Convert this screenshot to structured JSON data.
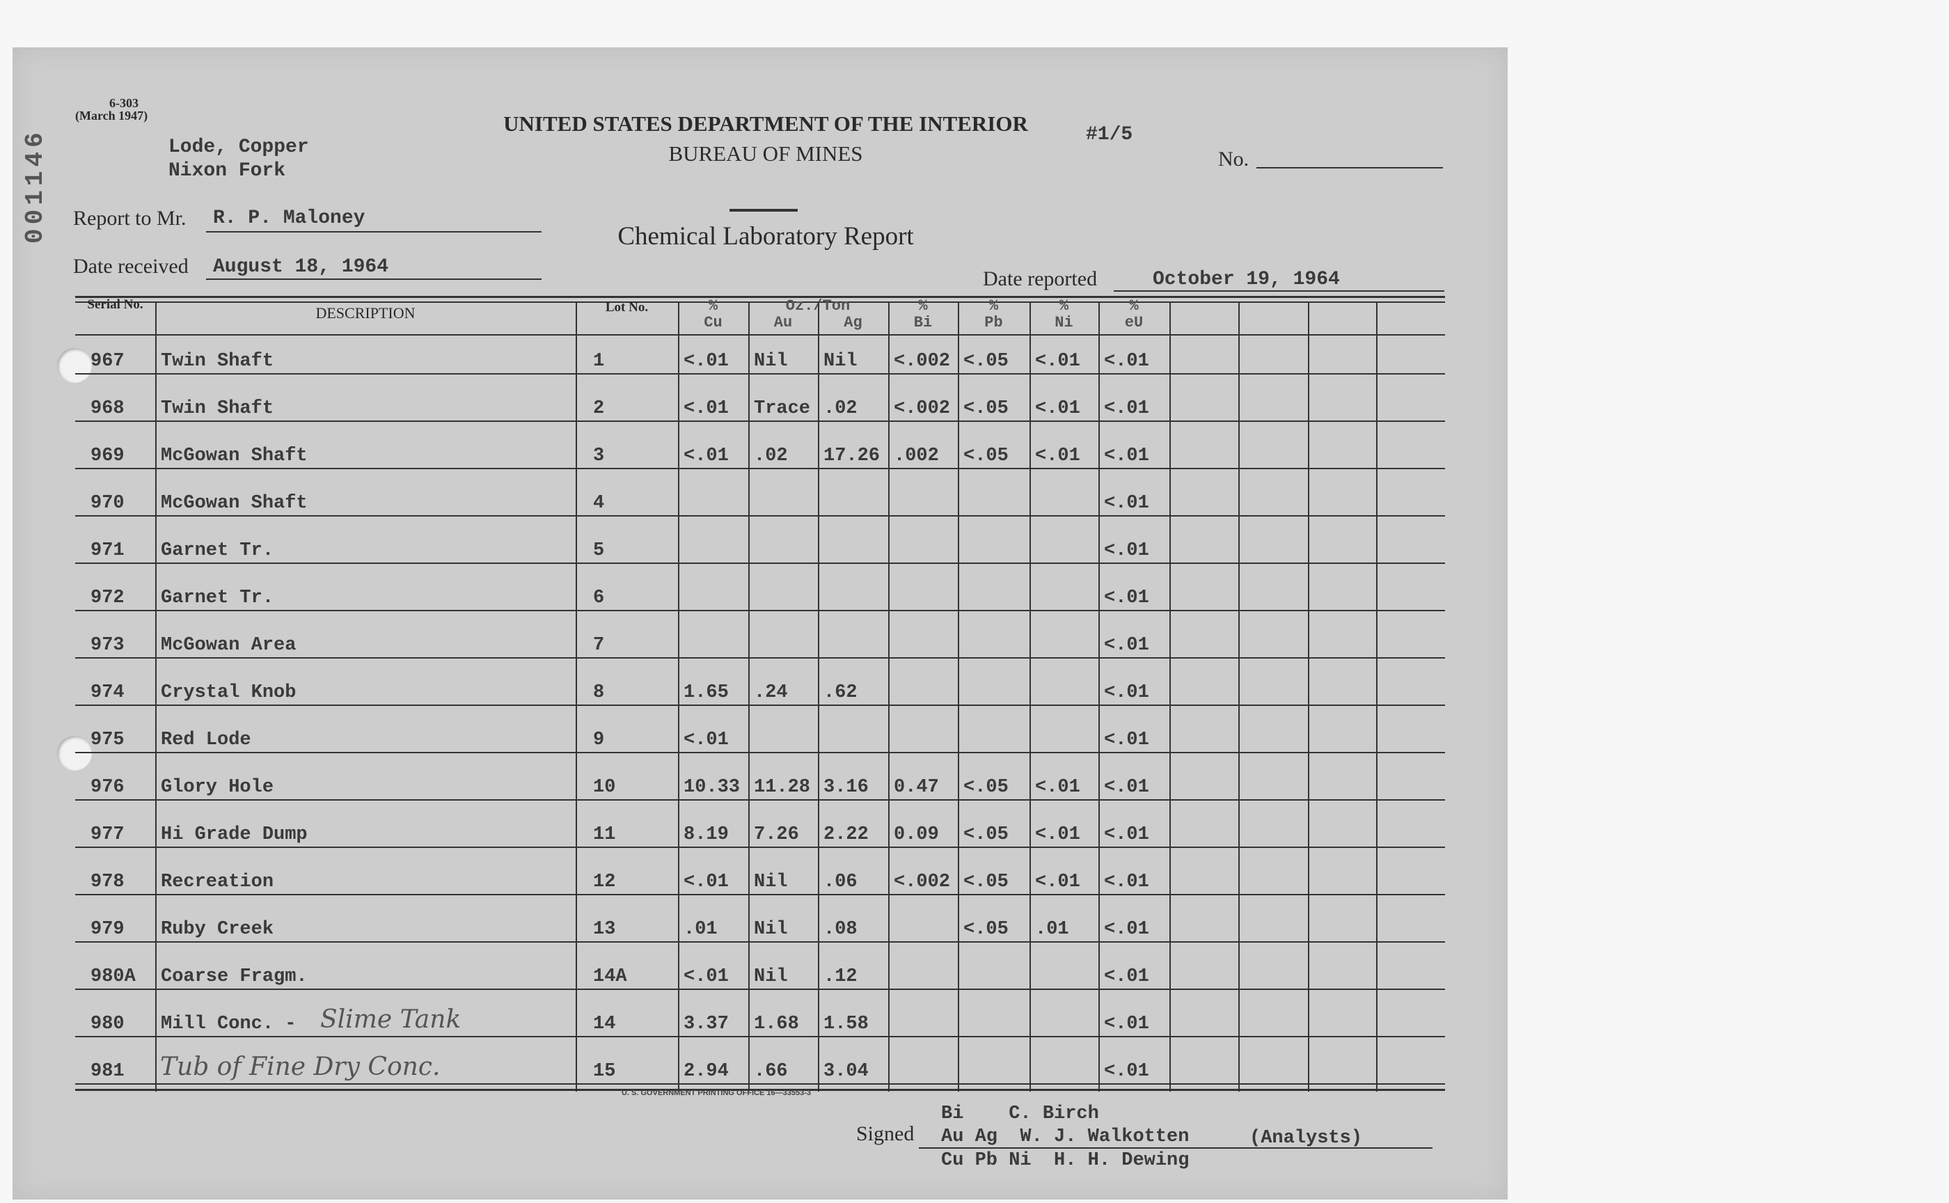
{
  "form": {
    "number": "6-303",
    "date": "(March 1947)"
  },
  "stamp": "001146",
  "subject": {
    "line1": "Lode, Copper",
    "line2": "Nixon Fork"
  },
  "header": {
    "title1": "UNITED STATES DEPARTMENT OF THE INTERIOR",
    "title2": "BUREAU OF MINES",
    "sheet": "#1/5",
    "no_label": "No.",
    "report_title": "Chemical Laboratory Report"
  },
  "fields": {
    "report_to_label": "Report to Mr.",
    "report_to_value": "R. P. Maloney",
    "date_received_label": "Date received",
    "date_received_value": "August 18, 1964",
    "date_reported_label": "Date reported",
    "date_reported_value": "October 19, 1964"
  },
  "table": {
    "headers": {
      "serial": "Serial No.",
      "description": "DESCRIPTION",
      "lot": "Lot No.",
      "oz_ton": "Oz./Ton",
      "cu": "%\nCu",
      "au": "Au",
      "ag": "Ag",
      "bi": "%\nBi",
      "pb": "%\nPb",
      "ni": "%\nNi",
      "eu": "%\neU"
    },
    "rows": [
      {
        "serial": "967",
        "description": "Twin Shaft",
        "lot": "1",
        "cu": "<.01",
        "au": "Nil",
        "ag": "Nil",
        "bi": "<.002",
        "pb": "<.05",
        "ni": "<.01",
        "eu": "<.01"
      },
      {
        "serial": "968",
        "description": "Twin Shaft",
        "lot": "2",
        "cu": "<.01",
        "au": "Trace",
        "ag": ".02",
        "bi": "<.002",
        "pb": "<.05",
        "ni": "<.01",
        "eu": "<.01"
      },
      {
        "serial": "969",
        "description": "McGowan Shaft",
        "lot": "3",
        "cu": "<.01",
        "au": ".02",
        "ag": "17.26",
        "bi": ".002",
        "pb": "<.05",
        "ni": "<.01",
        "eu": "<.01"
      },
      {
        "serial": "970",
        "description": "McGowan Shaft",
        "lot": "4",
        "cu": "",
        "au": "",
        "ag": "",
        "bi": "",
        "pb": "",
        "ni": "",
        "eu": "<.01"
      },
      {
        "serial": "971",
        "description": "Garnet Tr.",
        "lot": "5",
        "cu": "",
        "au": "",
        "ag": "",
        "bi": "",
        "pb": "",
        "ni": "",
        "eu": "<.01"
      },
      {
        "serial": "972",
        "description": "Garnet Tr.",
        "lot": "6",
        "cu": "",
        "au": "",
        "ag": "",
        "bi": "",
        "pb": "",
        "ni": "",
        "eu": "<.01"
      },
      {
        "serial": "973",
        "description": "McGowan Area",
        "lot": "7",
        "cu": "",
        "au": "",
        "ag": "",
        "bi": "",
        "pb": "",
        "ni": "",
        "eu": "<.01"
      },
      {
        "serial": "974",
        "description": "Crystal Knob",
        "lot": "8",
        "cu": "1.65",
        "au": ".24",
        "ag": ".62",
        "bi": "",
        "pb": "",
        "ni": "",
        "eu": "<.01"
      },
      {
        "serial": "975",
        "description": "Red Lode",
        "lot": "9",
        "cu": "<.01",
        "au": "",
        "ag": "",
        "bi": "",
        "pb": "",
        "ni": "",
        "eu": "<.01"
      },
      {
        "serial": "976",
        "description": "Glory Hole",
        "lot": "10",
        "cu": "10.33",
        "au": "11.28",
        "ag": "3.16",
        "bi": "0.47",
        "pb": "<.05",
        "ni": "<.01",
        "eu": "<.01"
      },
      {
        "serial": "977",
        "description": "Hi Grade Dump",
        "lot": "11",
        "cu": "8.19",
        "au": "7.26",
        "ag": "2.22",
        "bi": "0.09",
        "pb": "<.05",
        "ni": "<.01",
        "eu": "<.01"
      },
      {
        "serial": "978",
        "description": "Recreation",
        "lot": "12",
        "cu": "<.01",
        "au": "Nil",
        "ag": ".06",
        "bi": "<.002",
        "pb": "<.05",
        "ni": "<.01",
        "eu": "<.01"
      },
      {
        "serial": "979",
        "description": "Ruby Creek",
        "lot": "13",
        "cu": ".01",
        "au": "Nil",
        "ag": ".08",
        "bi": "",
        "pb": "<.05",
        "ni": ".01",
        "eu": "<.01"
      },
      {
        "serial": "980A",
        "description": "Coarse Fragm.",
        "lot": "14A",
        "cu": "<.01",
        "au": "Nil",
        "ag": ".12",
        "bi": "",
        "pb": "",
        "ni": "",
        "eu": "<.01"
      },
      {
        "serial": "980",
        "description": "Mill Conc. -",
        "handwritten": "Slime Tank",
        "lot": "14",
        "cu": "3.37",
        "au": "1.68",
        "ag": "1.58",
        "bi": "",
        "pb": "",
        "ni": "",
        "eu": "<.01"
      },
      {
        "serial": "981",
        "description": "",
        "handwritten": "Tub of Fine Dry Conc.",
        "lot": "15",
        "cu": "2.94",
        "au": ".66",
        "ag": "3.04",
        "bi": "",
        "pb": "",
        "ni": "",
        "eu": "<.01"
      }
    ]
  },
  "footer": {
    "printer": "U. S. GOVERNMENT PRINTING OFFICE   16—33553-3",
    "signed_label": "Signed",
    "sig1": "Bi    C. Birch",
    "sig2": "Au Ag  W. J. Walkotten",
    "analysts": "(Analysts)",
    "sig3": "Cu Pb Ni  H. H. Dewing"
  }
}
